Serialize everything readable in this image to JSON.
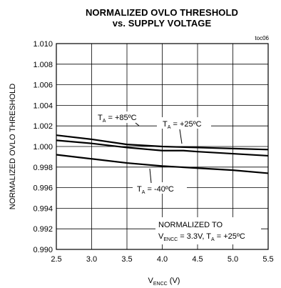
{
  "chart_data": {
    "type": "line",
    "title_line1": "NORMALIZED OVLO THRESHOLD",
    "title_line2": "vs. SUPPLY VOLTAGE",
    "tag": "toc06",
    "ylabel": "NORMALIZED OVLO THRESHOLD",
    "xlabel_main": "V",
    "xlabel_sub": "ENCC",
    "xlabel_unit": " (V)",
    "xlim": [
      2.5,
      5.5
    ],
    "ylim": [
      0.99,
      1.01
    ],
    "x_ticks": [
      "2.5",
      "3.0",
      "3.5",
      "4.0",
      "4.5",
      "5.0",
      "5.5"
    ],
    "x_tick_values": [
      2.5,
      3.0,
      3.5,
      4.0,
      4.5,
      5.0,
      5.5
    ],
    "y_ticks": [
      "0.990",
      "0.992",
      "0.994",
      "0.996",
      "0.998",
      "1.000",
      "1.002",
      "1.004",
      "1.006",
      "1.008",
      "1.010"
    ],
    "y_tick_values": [
      0.99,
      0.992,
      0.994,
      0.996,
      0.998,
      1.0,
      1.002,
      1.004,
      1.006,
      1.008,
      1.01
    ],
    "grid": true,
    "series": [
      {
        "name": "TA = +85ºC",
        "x": [
          2.5,
          3.0,
          3.5,
          4.0,
          4.5,
          5.0,
          5.5
        ],
        "y": [
          1.0011,
          1.0007,
          1.0002,
          1.0,
          0.9999,
          0.9998,
          0.9997
        ]
      },
      {
        "name": "TA = +25ºC",
        "x": [
          2.5,
          3.0,
          3.5,
          4.0,
          4.3,
          4.5,
          5.0,
          5.5
        ],
        "y": [
          1.0006,
          1.0003,
          0.9999,
          0.9996,
          0.9996,
          0.9995,
          0.9993,
          0.9991
        ]
      },
      {
        "name": "TA = -40ºC",
        "x": [
          2.5,
          3.0,
          3.5,
          4.0,
          4.5,
          5.0,
          5.5
        ],
        "y": [
          0.9992,
          0.9988,
          0.9984,
          0.9981,
          0.9979,
          0.9977,
          0.9974
        ]
      }
    ],
    "labels": {
      "t85_main": "T",
      "t85_sub": "A",
      "t85_val": " = +85ºC",
      "t25_main": "T",
      "t25_sub": "A",
      "t25_val": " = +25ºC",
      "tm40_main": "T",
      "tm40_sub": "A",
      "tm40_val": " = -40ºC"
    },
    "annotation": {
      "line1": "NORMALIZED TO",
      "l2_v": "V",
      "l2_vsub": "ENCC",
      "l2_mid": " = 3.3V, T",
      "l2_tsub": "A",
      "l2_end": " = +25ºC"
    }
  }
}
